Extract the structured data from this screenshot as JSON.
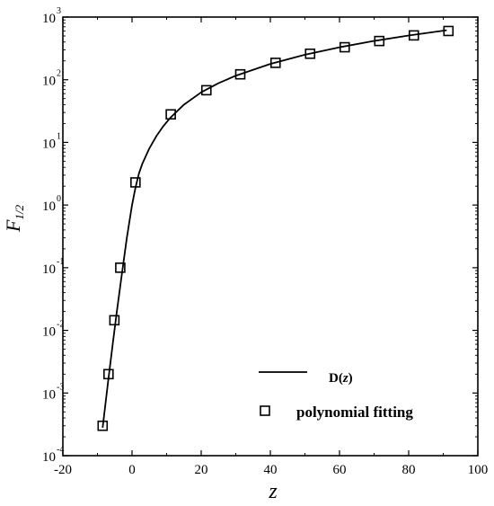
{
  "chart_data": {
    "type": "line",
    "title": "",
    "xlabel": "z",
    "ylabel": {
      "main": "F",
      "sub": "1/2"
    },
    "xlim": [
      -20,
      100
    ],
    "ylim": [
      0.0001,
      1000
    ],
    "yscale": "log",
    "grid": false,
    "legend_position": "bottom-right",
    "x_ticks": [
      -20,
      0,
      20,
      40,
      60,
      80,
      100
    ],
    "y_ticks": [
      {
        "value": 0.0001,
        "base": "10",
        "exp": "-4"
      },
      {
        "value": 0.001,
        "base": "10",
        "exp": "-3"
      },
      {
        "value": 0.01,
        "base": "10",
        "exp": "-2"
      },
      {
        "value": 0.1,
        "base": "10",
        "exp": "-1"
      },
      {
        "value": 1,
        "base": "10",
        "exp": "0"
      },
      {
        "value": 10,
        "base": "10",
        "exp": "1"
      },
      {
        "value": 100,
        "base": "10",
        "exp": "2"
      },
      {
        "value": 1000,
        "base": "10",
        "exp": "3"
      }
    ],
    "series": [
      {
        "name": "D(z)",
        "label_parts": [
          "D(",
          "z",
          ")"
        ],
        "style": "line",
        "color": "#000000",
        "x": [
          -8.5,
          -7,
          -5.5,
          -4.5,
          -3,
          -1.5,
          0,
          1,
          2,
          3,
          5,
          7,
          9,
          11,
          15,
          20,
          25,
          30,
          40,
          50,
          60,
          70,
          80,
          91
        ],
        "y": [
          0.00028,
          0.0014,
          0.0066,
          0.018,
          0.075,
          0.3,
          1.0,
          1.9,
          3.2,
          4.6,
          8.0,
          12.5,
          18.0,
          24.5,
          40,
          63,
          88,
          116,
          179,
          251,
          330,
          416,
          508,
          617
        ]
      },
      {
        "name": "polynomial fitting",
        "style": "marker-square-open",
        "color": "#000000",
        "x": [
          -8.5,
          -6.8,
          -5.1,
          -3.4,
          1.0,
          11.2,
          21.5,
          31.3,
          41.5,
          51.5,
          61.5,
          71.5,
          81.5,
          91.5
        ],
        "y": [
          0.0003,
          0.002,
          0.0145,
          0.1,
          2.3,
          28,
          68,
          122,
          186,
          260,
          330,
          415,
          510,
          600
        ]
      }
    ]
  }
}
